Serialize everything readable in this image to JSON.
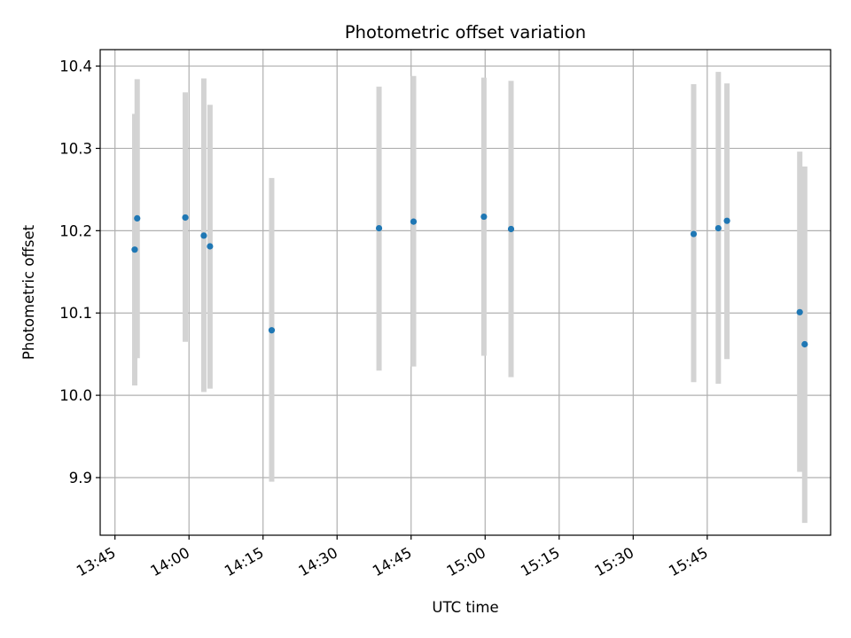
{
  "chart_data": {
    "type": "scatter",
    "title": "Photometric offset variation",
    "xlabel": "UTC time",
    "ylabel": "Photometric offset",
    "xlim": [
      "13:42",
      "16:10"
    ],
    "ylim": [
      9.83,
      10.42
    ],
    "x_ticks": [
      "13:45",
      "14:00",
      "14:15",
      "14:30",
      "14:45",
      "15:00",
      "15:15",
      "15:30",
      "15:45"
    ],
    "y_ticks": [
      "9.9",
      "10.0",
      "10.1",
      "10.2",
      "10.3",
      "10.4"
    ],
    "grid": true,
    "colors": {
      "point": "#1f77b4",
      "errorbar": "#d3d3d3",
      "grid": "#b0b0b0"
    },
    "points": [
      {
        "x": "13:49:00",
        "y": 10.177,
        "ylow": 10.012,
        "yhigh": 10.342
      },
      {
        "x": "13:49:30",
        "y": 10.215,
        "ylow": 10.045,
        "yhigh": 10.384
      },
      {
        "x": "13:59:15",
        "y": 10.216,
        "ylow": 10.065,
        "yhigh": 10.368
      },
      {
        "x": "14:03:00",
        "y": 10.194,
        "ylow": 10.004,
        "yhigh": 10.385
      },
      {
        "x": "14:04:15",
        "y": 10.181,
        "ylow": 10.008,
        "yhigh": 10.353
      },
      {
        "x": "14:16:45",
        "y": 10.079,
        "ylow": 9.895,
        "yhigh": 10.264
      },
      {
        "x": "14:38:30",
        "y": 10.203,
        "ylow": 10.03,
        "yhigh": 10.375
      },
      {
        "x": "14:45:30",
        "y": 10.211,
        "ylow": 10.035,
        "yhigh": 10.388
      },
      {
        "x": "14:59:45",
        "y": 10.217,
        "ylow": 10.048,
        "yhigh": 10.386
      },
      {
        "x": "15:05:15",
        "y": 10.202,
        "ylow": 10.022,
        "yhigh": 10.382
      },
      {
        "x": "15:42:15",
        "y": 10.196,
        "ylow": 10.016,
        "yhigh": 10.378
      },
      {
        "x": "15:47:15",
        "y": 10.203,
        "ylow": 10.014,
        "yhigh": 10.393
      },
      {
        "x": "15:49:00",
        "y": 10.212,
        "ylow": 10.044,
        "yhigh": 10.379
      },
      {
        "x": "16:03:45",
        "y": 10.101,
        "ylow": 9.907,
        "yhigh": 10.296
      },
      {
        "x": "16:04:45",
        "y": 10.062,
        "ylow": 9.845,
        "yhigh": 10.278
      }
    ]
  }
}
